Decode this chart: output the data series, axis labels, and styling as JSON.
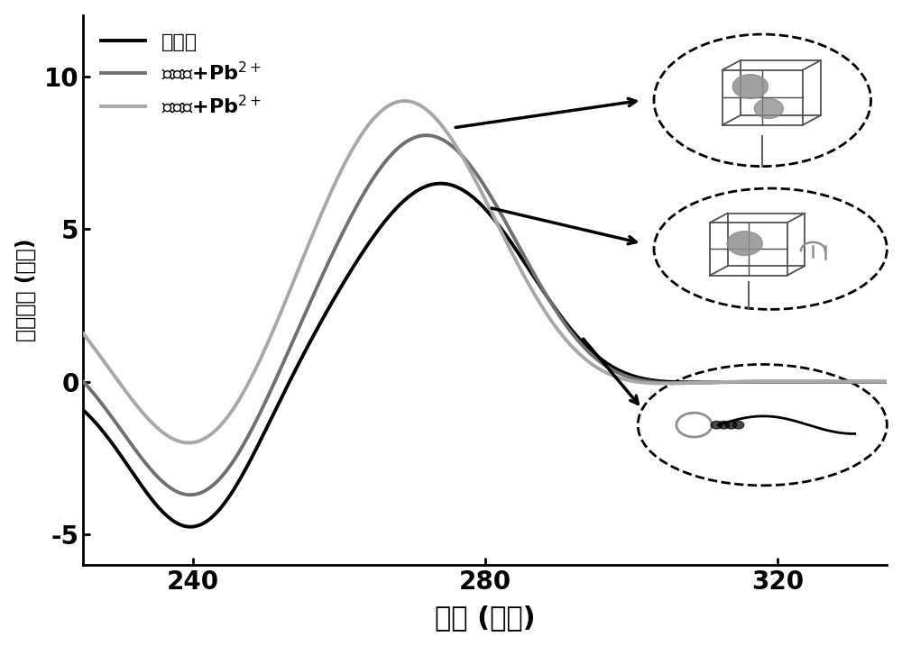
{
  "xlabel": "波长 (纳米)",
  "ylabel": "圆二色谱 (毫度)",
  "xlim": [
    225,
    335
  ],
  "ylim": [
    -6,
    12
  ],
  "yticks": [
    -5,
    0,
    5,
    10
  ],
  "xticks": [
    240,
    280,
    320
  ],
  "line1_color": "#000000",
  "line2_color": "#707070",
  "line3_color": "#a8a8a8",
  "line1_label": "适体酶",
  "line2_label": "适体酶+Pb$^{2+}$",
  "line3_label": "适配体+Pb$^{2+}$",
  "linewidth": 2.8,
  "background_color": "#ffffff",
  "xlabel_fontsize": 22,
  "ylabel_fontsize": 17,
  "tick_fontsize": 20,
  "legend_fontsize": 16
}
